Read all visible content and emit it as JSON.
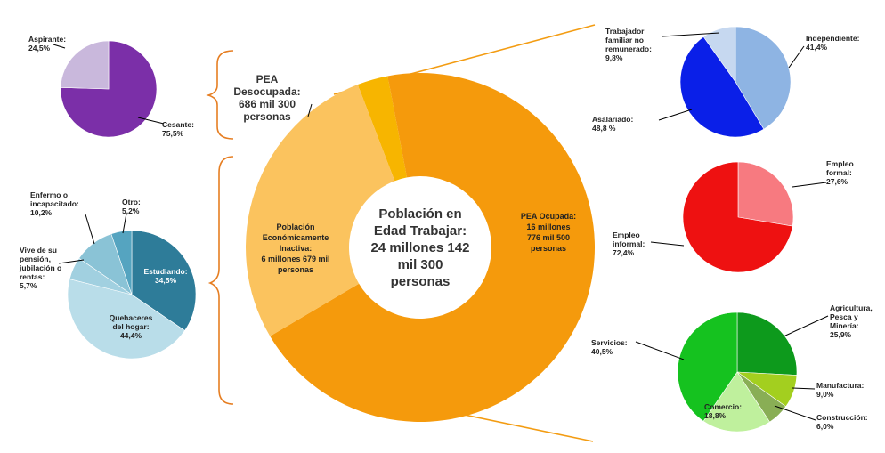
{
  "colors": {
    "bracket": "#e67e22",
    "zoom": "#f39c12",
    "frame": "#f5e4cf"
  },
  "chart_data": [
    {
      "id": "main",
      "type": "donut",
      "center_text": [
        "Población en",
        "Edad  Trabajar:",
        "24 millones 142",
        "mil 300",
        "personas"
      ],
      "slices": [
        {
          "name": "PEA Desocupada",
          "label": [
            "PEA",
            "Desocupada:",
            "686 mil 300",
            "personas"
          ],
          "value": 686300,
          "color": "#f7b500"
        },
        {
          "name": "PEA Ocupada",
          "label": [
            "PEA  Ocupada:",
            "16  millones",
            "776 mil 500",
            "personas"
          ],
          "value": 16776500,
          "color": "#f59a0c"
        },
        {
          "name": "Población Económicamente Inactiva",
          "label": [
            "Población",
            "Económicamente",
            "Inactiva:",
            "6 millones 679 mil",
            "personas"
          ],
          "value": 6679000,
          "color": "#fbc35e"
        }
      ]
    },
    {
      "id": "desocupada",
      "type": "pie",
      "slices": [
        {
          "label": [
            "Cesante:",
            "75,5%"
          ],
          "value": 75.5,
          "color": "#7b2fa8"
        },
        {
          "label": [
            "Aspirante:",
            "24,5%"
          ],
          "value": 24.5,
          "color": "#c9b8dc"
        }
      ]
    },
    {
      "id": "inactiva",
      "type": "pie",
      "slices": [
        {
          "label": [
            "Estudiando:",
            "34,5%"
          ],
          "value": 34.5,
          "color": "#2e7c99"
        },
        {
          "label": [
            "Quehaceres",
            "del hogar:",
            "44,4%"
          ],
          "value": 44.4,
          "color": "#b9dde9"
        },
        {
          "label": [
            "Vive de su",
            "pensión,",
            "jubilación o",
            "rentas:",
            "5,7%"
          ],
          "value": 5.7,
          "color": "#a1d0e0"
        },
        {
          "label": [
            "Enfermo o",
            "incapacitado:",
            "10,2%"
          ],
          "value": 10.2,
          "color": "#8ac3d6"
        },
        {
          "label": [
            "Otro:",
            "5,2%"
          ],
          "value": 5.2,
          "color": "#55a4c0"
        }
      ]
    },
    {
      "id": "posicion",
      "type": "pie",
      "slices": [
        {
          "label": [
            "Independiente:",
            "41,4%"
          ],
          "value": 41.4,
          "color": "#8eb4e3"
        },
        {
          "label": [
            "Asalariado:",
            "48,8 %"
          ],
          "value": 48.8,
          "color": "#0a1fe8"
        },
        {
          "label": [
            "Trabajador",
            "familiar no",
            "remunerado:",
            "9,8%"
          ],
          "value": 9.8,
          "color": "#c6d8f0"
        }
      ]
    },
    {
      "id": "formalidad",
      "type": "pie",
      "slices": [
        {
          "label": [
            "Empleo",
            "formal:",
            "27,6%"
          ],
          "value": 27.6,
          "color": "#f77a80"
        },
        {
          "label": [
            "Empleo",
            "informal:",
            "72,4%"
          ],
          "value": 72.4,
          "color": "#ee1111"
        }
      ]
    },
    {
      "id": "sector",
      "type": "pie",
      "slices": [
        {
          "label": [
            "Agricultura,",
            "Pesca y",
            "Minería:",
            "25,9%"
          ],
          "value": 25.9,
          "color": "#0d9a1c"
        },
        {
          "label": [
            "Manufactura:",
            "9,0%"
          ],
          "value": 9.0,
          "color": "#a3cf1f"
        },
        {
          "label": [
            "Construcción:",
            "6,0%"
          ],
          "value": 6.0,
          "color": "#89ae55"
        },
        {
          "label": [
            "Comercio:",
            "18,8%"
          ],
          "value": 18.8,
          "color": "#bff09d"
        },
        {
          "label": [
            "Servicios:",
            "40,5%"
          ],
          "value": 40.5,
          "color": "#15c21f"
        }
      ]
    }
  ]
}
